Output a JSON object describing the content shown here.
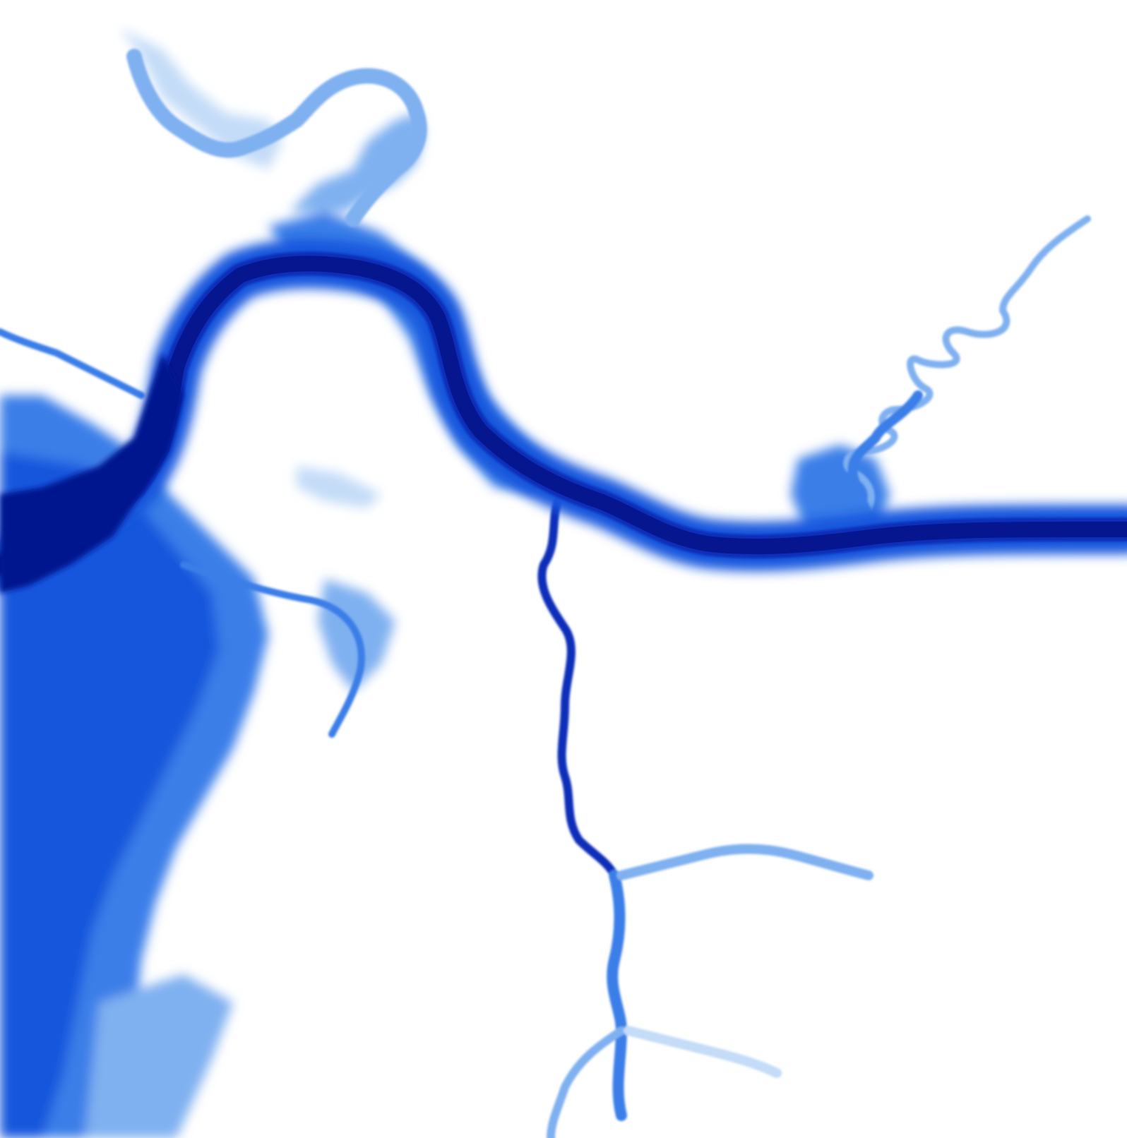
{
  "map": {
    "background": "#ffffff",
    "palette": {
      "deep": "#06168f",
      "main": "#0a2fb8",
      "mid": "#1656dd",
      "shallow": "#3a7ee8",
      "light": "#7fb0f0",
      "faint": "#c4dcf8"
    },
    "layers": [
      "floodplain",
      "tributaries",
      "main-channel"
    ]
  }
}
